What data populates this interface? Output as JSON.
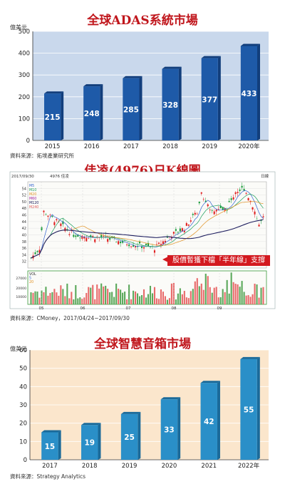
{
  "adas": {
    "title": "全球ADAS系統市場",
    "unit": "億美元",
    "source": "資料來源：拓墣產業研究所",
    "chart_data": {
      "type": "bar",
      "categories": [
        "2015",
        "2016",
        "2017",
        "2018",
        "2019",
        "2020年"
      ],
      "values": [
        215,
        248,
        285,
        328,
        377,
        433
      ],
      "ylim": [
        0,
        500
      ],
      "yticks": [
        "0",
        "100",
        "200",
        "300",
        "400",
        "500"
      ],
      "grid": true,
      "colors": {
        "panel": "#c9d8ec",
        "bar": "#1e5aa8",
        "bar_dark": "#123e7c"
      }
    }
  },
  "stock": {
    "title": "佳凌(4976)日K線圖",
    "callout": "股價暫獲下檔「半年線」支撐",
    "source": "資料來源：CMoney，2017/04/24~2017/09/30",
    "header_date": "2017/09/30",
    "header_name": "4976 佳凌",
    "header_right": "日線",
    "legend": [
      "M5",
      "M10",
      "M20",
      "M60",
      "M120",
      "M240"
    ],
    "vol_legend": [
      "VOL",
      "5",
      "20"
    ],
    "chart_data": {
      "type": "candlestick",
      "ylim": [
        30,
        56
      ],
      "yticks": [
        "32",
        "34",
        "36",
        "38",
        "40",
        "42",
        "44",
        "46",
        "48",
        "50",
        "52",
        "54"
      ],
      "months": [
        "05",
        "06",
        "07",
        "08",
        "09"
      ],
      "vol_ticks": [
        "10000",
        "20000",
        "27000"
      ],
      "colors": {
        "up": "#e02020",
        "down": "#1a9a3a",
        "ma5": "#3060d0",
        "ma20": "#e09020",
        "ma60": "#202060",
        "ma_short": "#20a060"
      }
    }
  },
  "speaker": {
    "title": "全球智慧音箱市場",
    "unit": "億美元",
    "source": "資料來源：Strategy Analytics",
    "chart_data": {
      "type": "bar",
      "categories": [
        "2017",
        "2018",
        "2019",
        "2020",
        "2021",
        "2022年"
      ],
      "values": [
        15,
        19,
        25,
        33,
        42,
        55
      ],
      "ylim": [
        0,
        60
      ],
      "yticks": [
        "0",
        "10",
        "20",
        "30",
        "40",
        "50",
        "60"
      ],
      "grid": true,
      "colors": {
        "panel": "#fbe6cc",
        "bar": "#2a8fc8",
        "bar_dark": "#1a6a9a"
      }
    }
  }
}
